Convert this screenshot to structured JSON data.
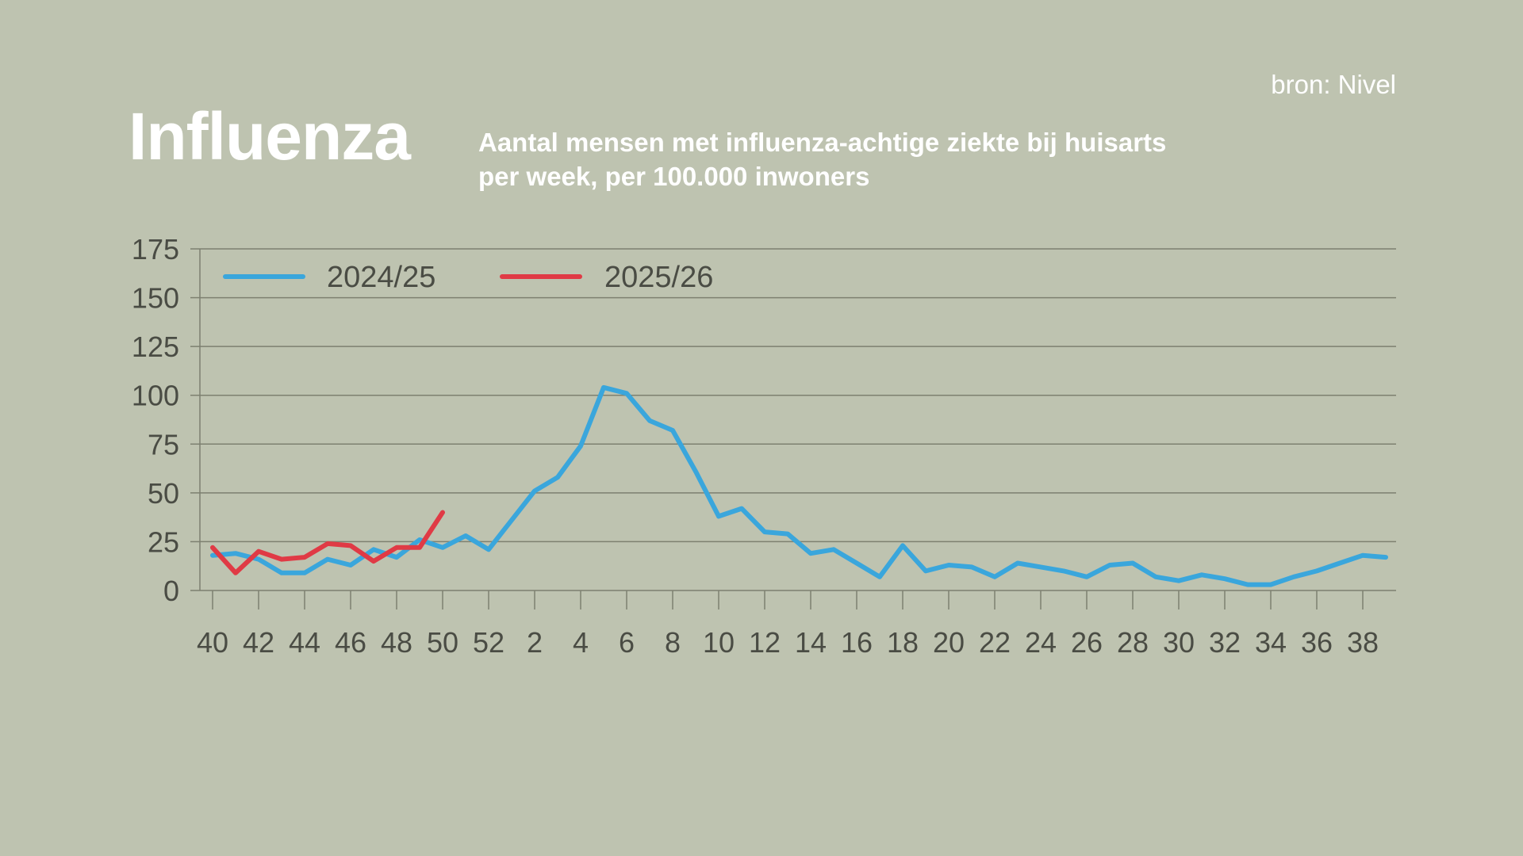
{
  "header": {
    "title": "Influenza",
    "subtitle_line1": "Aantal mensen met influenza-achtige ziekte bij huisarts",
    "subtitle_line2": "per week, per 100.000 inwoners",
    "source": "bron: Nivel"
  },
  "colors": {
    "background": "#bec3b0",
    "grid": "#7d8070",
    "text": "#4a4c44",
    "series_2024": "#3aa6dc",
    "series_2025": "#e03a45"
  },
  "chart_data": {
    "type": "line",
    "title": "Aantal mensen met influenza-achtige ziekte bij huisarts per week, per 100.000 inwoners",
    "xlabel": "",
    "ylabel": "",
    "ylim": [
      0,
      175
    ],
    "yticks": [
      0,
      25,
      50,
      75,
      100,
      125,
      150,
      175
    ],
    "x_tick_labels": [
      "40",
      "42",
      "44",
      "46",
      "48",
      "50",
      "52",
      "2",
      "4",
      "6",
      "8",
      "10",
      "12",
      "14",
      "16",
      "18",
      "20",
      "22",
      "24",
      "26",
      "28",
      "30",
      "32",
      "34",
      "36",
      "38"
    ],
    "legend_position": "top-left",
    "grid": true,
    "series": [
      {
        "name": "2024/25",
        "color": "#3aa6dc",
        "values": [
          18,
          19,
          16,
          9,
          9,
          16,
          13,
          21,
          17,
          26,
          22,
          28,
          21,
          36,
          51,
          58,
          74,
          104,
          101,
          87,
          82,
          61,
          38,
          42,
          30,
          29,
          19,
          21,
          14,
          7,
          23,
          10,
          13,
          12,
          7,
          14,
          12,
          10,
          7,
          13,
          14,
          7,
          5,
          8,
          6,
          3,
          3,
          7,
          10,
          14,
          18,
          17
        ]
      },
      {
        "name": "2025/26",
        "color": "#e03a45",
        "values": [
          22,
          9,
          20,
          16,
          17,
          24,
          23,
          15,
          22,
          22,
          40
        ]
      }
    ]
  }
}
